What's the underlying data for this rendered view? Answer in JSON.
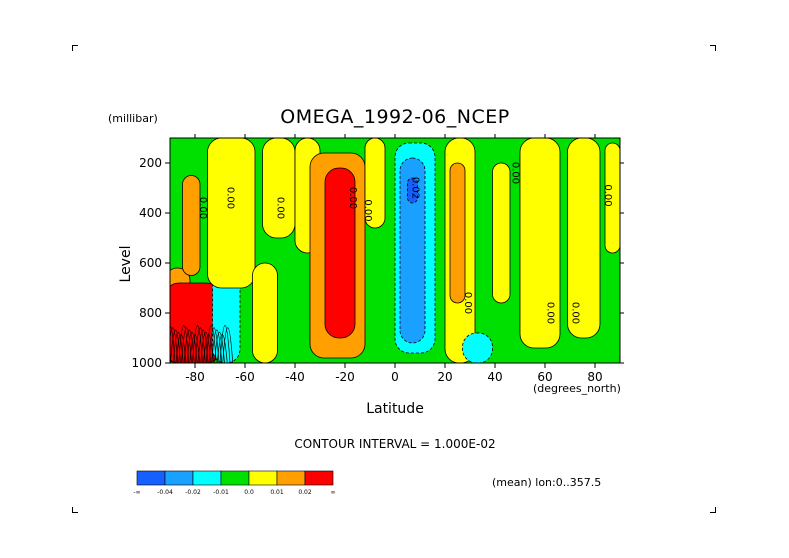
{
  "figure": {
    "title": "OMEGA_1992-06_NCEP",
    "y_units": "(millibar)",
    "x_units": "(degrees_north)",
    "contour_interval": "CONTOUR INTERVAL = 1.000E-02",
    "mean_note": "(mean) lon:0..357.5"
  },
  "chart_data": {
    "type": "heatmap",
    "title": "OMEGA_1992-06_NCEP",
    "xlabel": "Latitude",
    "ylabel": "Level",
    "xlim": [
      -90,
      90
    ],
    "ylim": [
      1000,
      100
    ],
    "x_ticks": [
      "-80",
      "-60",
      "-40",
      "-20",
      "0",
      "20",
      "40",
      "60",
      "80"
    ],
    "y_ticks": [
      "200",
      "400",
      "600",
      "800",
      "1000"
    ],
    "colorbar": {
      "labels": [
        "-∞",
        "-0.04",
        "-0.02",
        "-0.01",
        "0.0",
        "0.01",
        "0.02",
        "∞"
      ],
      "colors": [
        "#1560ff",
        "#1aa0ff",
        "#00ffff",
        "#00e000",
        "#ffff00",
        "#ffa000",
        "#ff0000"
      ]
    },
    "contour_labels": [
      "0.00",
      "0.00",
      "0.00",
      "0.00",
      "0.00",
      "0.02",
      "0.00",
      "0.00",
      "0.00",
      "0.00",
      "0.00"
    ],
    "regions": [
      {
        "level": 0.01,
        "lat": [
          -92,
          -82
        ],
        "p": [
          620,
          1000
        ]
      },
      {
        "level": 0.02,
        "lat": [
          -92,
          -70
        ],
        "p": [
          680,
          1000
        ]
      },
      {
        "level": 0.01,
        "lat": [
          -85,
          -78
        ],
        "p": [
          250,
          650
        ]
      },
      {
        "level": -0.01,
        "lat": [
          -73,
          -62
        ],
        "p": [
          360,
          1000
        ]
      },
      {
        "level": 0.0,
        "lat": [
          -75,
          -56
        ],
        "p": [
          100,
          700
        ]
      },
      {
        "level": 0.0,
        "lat": [
          -53,
          -40
        ],
        "p": [
          100,
          500
        ]
      },
      {
        "level": 0.0,
        "lat": [
          -57,
          -47
        ],
        "p": [
          600,
          1000
        ]
      },
      {
        "level": 0.0,
        "lat": [
          -40,
          -30
        ],
        "p": [
          100,
          560
        ]
      },
      {
        "level": 0.01,
        "lat": [
          -34,
          -12
        ],
        "p": [
          160,
          980
        ]
      },
      {
        "level": 0.02,
        "lat": [
          -28,
          -16
        ],
        "p": [
          220,
          900
        ]
      },
      {
        "level": 0.0,
        "lat": [
          -12,
          -4
        ],
        "p": [
          100,
          460
        ]
      },
      {
        "level": -0.01,
        "lat": [
          0,
          16
        ],
        "p": [
          120,
          960
        ]
      },
      {
        "level": -0.02,
        "lat": [
          2,
          12
        ],
        "p": [
          180,
          920
        ]
      },
      {
        "level": -0.04,
        "lat": [
          5,
          9
        ],
        "p": [
          260,
          360
        ]
      },
      {
        "level": 0.0,
        "lat": [
          20,
          32
        ],
        "p": [
          100,
          1000
        ]
      },
      {
        "level": 0.01,
        "lat": [
          22,
          28
        ],
        "p": [
          200,
          760
        ]
      },
      {
        "level": -0.01,
        "lat": [
          27,
          39
        ],
        "p": [
          880,
          1000
        ]
      },
      {
        "level": 0.0,
        "lat": [
          39,
          46
        ],
        "p": [
          200,
          760
        ]
      },
      {
        "level": 0.0,
        "lat": [
          50,
          66
        ],
        "p": [
          100,
          940
        ]
      },
      {
        "level": 0.0,
        "lat": [
          69,
          82
        ],
        "p": [
          100,
          900
        ]
      },
      {
        "level": 0.0,
        "lat": [
          84,
          90
        ],
        "p": [
          120,
          560
        ]
      }
    ]
  }
}
